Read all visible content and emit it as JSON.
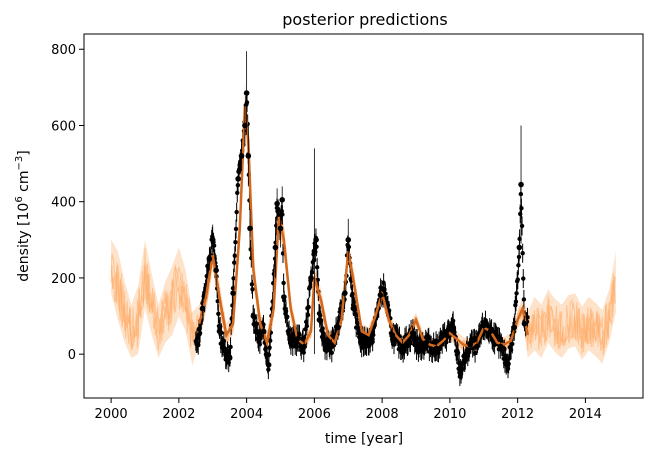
{
  "chart_data": {
    "type": "scatter",
    "title": "posterior predictions",
    "xlabel": "time [year]",
    "ylabel_parts": {
      "pre": "density [10",
      "sup1": "6",
      "mid": " cm",
      "sup2": "−3",
      "post": "]"
    },
    "xlim": [
      1999.2,
      2015.7
    ],
    "ylim": [
      -115,
      840
    ],
    "x_ticks": [
      2000,
      2002,
      2004,
      2006,
      2008,
      2010,
      2012,
      2014
    ],
    "x_tick_labels": [
      "2000",
      "2002",
      "2004",
      "2006",
      "2008",
      "2010",
      "2012",
      "2014"
    ],
    "y_ticks": [
      0,
      200,
      400,
      600,
      800
    ],
    "y_tick_labels": [
      "0",
      "200",
      "400",
      "600",
      "800"
    ],
    "grid": false,
    "legend": "none",
    "colors": {
      "observations": "#000000",
      "prediction": "#d2691e",
      "prediction_band": "#fdae6b"
    },
    "series": [
      {
        "kind": "observations",
        "span": [
          2002.5,
          2012.3
        ],
        "x": [
          2002.55,
          2002.7,
          2002.9,
          2003.0,
          2003.1,
          2003.2,
          2003.35,
          2003.5,
          2003.6,
          2003.75,
          2003.85,
          2003.95,
          2004.0,
          2004.05,
          2004.1,
          2004.2,
          2004.35,
          2004.5,
          2004.65,
          2004.85,
          2004.9,
          2005.0,
          2005.05,
          2005.1,
          2005.3,
          2005.5,
          2005.7,
          2005.9,
          2006.0,
          2006.05,
          2006.15,
          2006.3,
          2006.5,
          2006.7,
          2006.9,
          2007.0,
          2007.15,
          2007.4,
          2007.7,
          2007.95,
          2008.05,
          2008.3,
          2008.6,
          2008.9,
          2009.05,
          2009.3,
          2009.6,
          2009.9,
          2010.1,
          2010.3,
          2010.6,
          2010.8,
          2011.0,
          2011.2,
          2011.5,
          2011.7,
          2011.9,
          2012.05,
          2012.1,
          2012.2
        ],
        "y": [
          25,
          120,
          250,
          300,
          220,
          60,
          10,
          -10,
          160,
          460,
          520,
          600,
          685,
          520,
          330,
          100,
          40,
          60,
          -28,
          280,
          395,
          330,
          405,
          150,
          30,
          40,
          20,
          200,
          270,
          300,
          90,
          30,
          20,
          70,
          160,
          300,
          120,
          30,
          40,
          155,
          170,
          50,
          20,
          55,
          20,
          30,
          15,
          50,
          70,
          -48,
          25,
          20,
          75,
          60,
          20,
          -28,
          70,
          280,
          445,
          80
        ],
        "y_upper": [
          40,
          140,
          280,
          340,
          260,
          80,
          30,
          10,
          190,
          500,
          560,
          650,
          795,
          600,
          380,
          130,
          60,
          80,
          -10,
          360,
          435,
          380,
          440,
          190,
          50,
          60,
          40,
          230,
          540,
          320,
          110,
          50,
          40,
          90,
          190,
          355,
          140,
          50,
          60,
          175,
          190,
          70,
          40,
          75,
          40,
          50,
          35,
          70,
          90,
          -30,
          45,
          40,
          95,
          80,
          40,
          -10,
          100,
          315,
          600,
          100
        ]
      },
      {
        "kind": "prediction",
        "x": [
          2000.0,
          2000.2,
          2000.4,
          2000.6,
          2000.8,
          2001.0,
          2001.2,
          2001.4,
          2001.6,
          2001.8,
          2002.0,
          2002.2,
          2002.4,
          2002.6,
          2002.8,
          2003.0,
          2003.2,
          2003.4,
          2003.6,
          2003.8,
          2003.95,
          2004.05,
          2004.2,
          2004.4,
          2004.6,
          2004.8,
          2004.95,
          2005.1,
          2005.3,
          2005.5,
          2005.7,
          2005.9,
          2006.0,
          2006.2,
          2006.4,
          2006.6,
          2006.8,
          2007.0,
          2007.2,
          2007.4,
          2007.6,
          2007.8,
          2008.0,
          2008.2,
          2008.4,
          2008.6,
          2008.8,
          2009.0,
          2009.2,
          2009.4,
          2009.6,
          2009.8,
          2010.0,
          2010.2,
          2010.4,
          2010.6,
          2010.8,
          2011.0,
          2011.2,
          2011.4,
          2011.6,
          2011.8,
          2012.0,
          2012.15,
          2012.3,
          2012.5,
          2012.7,
          2012.9,
          2013.1,
          2013.3,
          2013.5,
          2013.7,
          2013.9,
          2014.1,
          2014.3,
          2014.5,
          2014.7,
          2014.9
        ],
        "y": [
          230,
          180,
          110,
          60,
          90,
          210,
          130,
          60,
          110,
          140,
          190,
          140,
          40,
          80,
          150,
          260,
          150,
          50,
          80,
          330,
          650,
          560,
          220,
          80,
          30,
          120,
          360,
          300,
          120,
          40,
          25,
          60,
          200,
          140,
          50,
          30,
          90,
          270,
          170,
          60,
          50,
          100,
          160,
          90,
          50,
          30,
          50,
          90,
          40,
          25,
          20,
          35,
          55,
          40,
          25,
          20,
          30,
          70,
          60,
          30,
          25,
          35,
          90,
          120,
          50,
          80,
          60,
          100,
          75,
          60,
          85,
          90,
          55,
          80,
          65,
          45,
          100,
          190
        ],
        "band": [
          70,
          90,
          80,
          70,
          90,
          90,
          80,
          70,
          80,
          90,
          90,
          80,
          70,
          50,
          40,
          40,
          40,
          30,
          30,
          50,
          60,
          60,
          40,
          30,
          30,
          30,
          40,
          40,
          30,
          20,
          20,
          20,
          30,
          30,
          20,
          20,
          20,
          30,
          30,
          20,
          20,
          20,
          25,
          20,
          20,
          20,
          20,
          20,
          20,
          20,
          20,
          20,
          20,
          20,
          20,
          20,
          20,
          20,
          20,
          20,
          20,
          20,
          25,
          30,
          60,
          70,
          70,
          70,
          70,
          70,
          70,
          70,
          70,
          70,
          70,
          70,
          70,
          80
        ]
      }
    ]
  }
}
